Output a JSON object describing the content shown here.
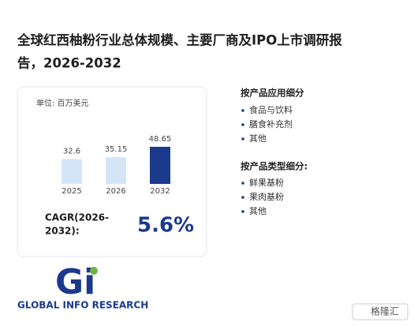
{
  "title": [
    "全球红西柚粉行业总体规模、主要厂商及IPO上市调研报",
    "告，2026-2032"
  ],
  "chart_data": {
    "type": "bar",
    "unit": "单位: 百万美元",
    "categories": [
      "2025",
      "2026",
      "2032"
    ],
    "values": [
      32.6,
      35.15,
      48.65
    ],
    "colors": [
      "#d5e5f8",
      "#d5e5f8",
      "#1b3a8c"
    ]
  },
  "cagr": {
    "label": [
      "CAGR(2026-",
      "2032):"
    ],
    "value": "5.6%"
  },
  "application": {
    "heading": "按产品应用细分",
    "items": [
      "食品与饮料",
      "膳食补充剂",
      "其他"
    ]
  },
  "product_type": {
    "heading": "按产品类型细分:",
    "items": [
      "鲜果基粉",
      "果肉基粉",
      "其他"
    ]
  },
  "logo": {
    "mark": "Gi",
    "name": "GLOBAL INFO RESEARCH"
  },
  "badge": "格隆汇"
}
